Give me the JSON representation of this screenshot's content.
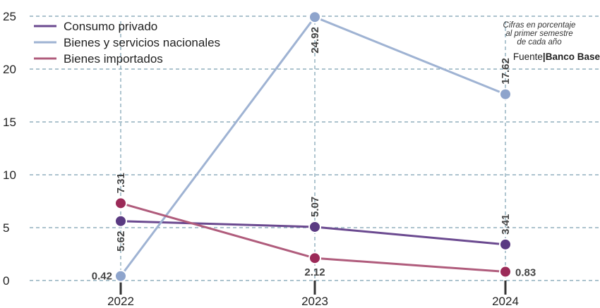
{
  "chart_data": {
    "type": "line",
    "categories": [
      "2022",
      "2023",
      "2024"
    ],
    "ylim": [
      0,
      25
    ],
    "yticks": [
      0,
      5,
      10,
      15,
      20,
      25
    ],
    "grid": true,
    "legend_position": "top-left",
    "series": [
      {
        "name": "Consumo privado",
        "color": "#6b4a90",
        "marker_color": "#5a3a82",
        "values": [
          5.62,
          5.07,
          3.41
        ],
        "labels": [
          "5.62",
          "5.07",
          "3.41"
        ]
      },
      {
        "name": "Bienes y servicios nacionales",
        "color": "#9fb3d3",
        "marker_color": "#8ea4cc",
        "values": [
          0.42,
          24.92,
          17.62
        ],
        "labels": [
          "0.42",
          "24.92",
          "17.62"
        ]
      },
      {
        "name": "Bienes importados",
        "color": "#b05c7c",
        "marker_color": "#9b2a58",
        "values": [
          7.31,
          2.12,
          0.83
        ],
        "labels": [
          "7.31",
          "2.12",
          "0.83"
        ]
      }
    ]
  },
  "note": {
    "line1": "Cifras en porcentaje",
    "line2": "al primer semestre",
    "line3": "de cada año"
  },
  "source": {
    "prefix": "Fuente",
    "separator": "|",
    "name": "Banco Base"
  }
}
